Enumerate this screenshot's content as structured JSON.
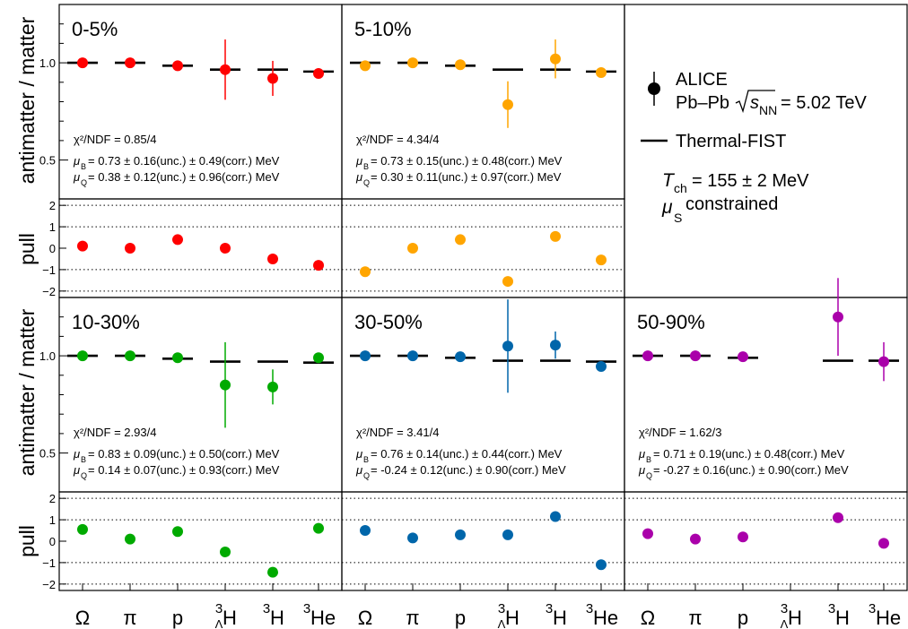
{
  "chart_data": {
    "type": "scatter",
    "y_axis_ratio": {
      "label": "antimatter / matter",
      "ticks": [
        "1.0",
        "0.5"
      ],
      "ylim": [
        0.3,
        1.3
      ]
    },
    "y_axis_pull": {
      "label": "pull",
      "ticks": [
        "2",
        "1",
        "0",
        "−1",
        "−2"
      ],
      "ylim": [
        -2.3,
        2.3
      ]
    },
    "categories": [
      {
        "main": "Ω",
        "sup": "",
        "sub": ""
      },
      {
        "main": "π",
        "sup": "",
        "sub": ""
      },
      {
        "main": "p",
        "sup": "",
        "sub": ""
      },
      {
        "main": "H",
        "sup": "3",
        "sub": "Λ"
      },
      {
        "main": "H",
        "sup": "3",
        "sub": ""
      },
      {
        "main": "He",
        "sup": "3",
        "sub": ""
      }
    ],
    "legend": {
      "data_label": "ALICE",
      "system": "Pb–Pb",
      "sqrt_s_symbol": "s",
      "sqrt_s_sub": "NN",
      "energy": "= 5.02 TeV",
      "model_label": "Thermal-FIST",
      "t_symbol": "T",
      "t_sub": "ch",
      "t_value": "= 155 ± 2 MeV",
      "mu_symbol": "μ",
      "mu_sub": "S",
      "mu_text": "constrained"
    },
    "panels": [
      {
        "name": "0-5%",
        "color": "#ff0000",
        "chi2_label": "χ²/NDF = 0.85/4",
        "mu_b_label": "= 0.73 ± 0.16(unc.) ± 0.49(corr.) MeV",
        "mu_q_label": "= 0.38 ± 0.12(unc.) ± 0.96(corr.) MeV",
        "ratio": [
          1.0,
          1.0,
          0.985,
          0.965,
          0.92,
          0.945
        ],
        "ratio_err": [
          0.01,
          0.01,
          0.01,
          0.155,
          0.09,
          0.02
        ],
        "model": [
          1.0,
          1.0,
          0.985,
          0.965,
          0.965,
          0.955
        ],
        "pull": [
          0.1,
          0.0,
          0.4,
          0.0,
          -0.5,
          -0.8
        ]
      },
      {
        "name": "5-10%",
        "color": "#ffa500",
        "chi2_label": "χ²/NDF = 4.34/4",
        "mu_b_label": "= 0.73 ± 0.15(unc.) ± 0.48(corr.) MeV",
        "mu_q_label": "= 0.30 ± 0.11(unc.) ± 0.97(corr.) MeV",
        "ratio": [
          0.985,
          1.0,
          0.99,
          0.785,
          1.02,
          0.95
        ],
        "ratio_err": [
          0.01,
          0.01,
          0.01,
          0.12,
          0.1,
          0.02
        ],
        "model": [
          1.0,
          1.0,
          0.985,
          0.965,
          0.965,
          0.955
        ],
        "pull": [
          -1.1,
          0.0,
          0.4,
          -1.55,
          0.55,
          -0.55
        ]
      },
      {
        "name": "10-30%",
        "color": "#00aa00",
        "chi2_label": "χ²/NDF = 2.93/4",
        "mu_b_label": "= 0.83 ± 0.09(unc.) ± 0.50(corr.) MeV",
        "mu_q_label": "= 0.14 ± 0.07(unc.) ± 0.93(corr.) MeV",
        "ratio": [
          1.0,
          1.0,
          0.99,
          0.85,
          0.84,
          0.99
        ],
        "ratio_err": [
          0.01,
          0.01,
          0.01,
          0.22,
          0.09,
          0.02
        ],
        "model": [
          1.0,
          1.0,
          0.985,
          0.97,
          0.97,
          0.965
        ],
        "pull": [
          0.55,
          0.1,
          0.45,
          -0.5,
          -1.45,
          0.6
        ]
      },
      {
        "name": "30-50%",
        "color": "#0066aa",
        "chi2_label": "χ²/NDF = 3.41/4",
        "mu_b_label": "= 0.76 ± 0.14(unc.) ± 0.44(corr.) MeV",
        "mu_q_label": "= -0.24 ± 0.12(unc.) ± 0.90(corr.) MeV",
        "ratio": [
          1.0,
          1.0,
          0.995,
          1.05,
          1.055,
          0.945
        ],
        "ratio_err": [
          0.01,
          0.01,
          0.01,
          0.24,
          0.07,
          0.02
        ],
        "model": [
          1.0,
          1.0,
          0.99,
          0.975,
          0.975,
          0.97
        ],
        "pull": [
          0.5,
          0.15,
          0.3,
          0.3,
          1.15,
          -1.1
        ]
      },
      {
        "name": "50-90%",
        "color": "#aa00aa",
        "chi2_label": "χ²/NDF = 1.62/3",
        "mu_b_label": "= 0.71 ± 0.19(unc.) ± 0.48(corr.) MeV",
        "mu_q_label": "= -0.27 ± 0.16(unc.) ± 0.90(corr.) MeV",
        "ratio": [
          1.0,
          1.0,
          0.995,
          null,
          1.2,
          0.97
        ],
        "ratio_err": [
          0.01,
          0.01,
          0.01,
          null,
          0.2,
          0.1
        ],
        "model": [
          1.0,
          1.0,
          0.99,
          null,
          0.975,
          0.975
        ],
        "pull": [
          0.35,
          0.1,
          0.2,
          null,
          1.1,
          -0.1
        ]
      }
    ]
  }
}
